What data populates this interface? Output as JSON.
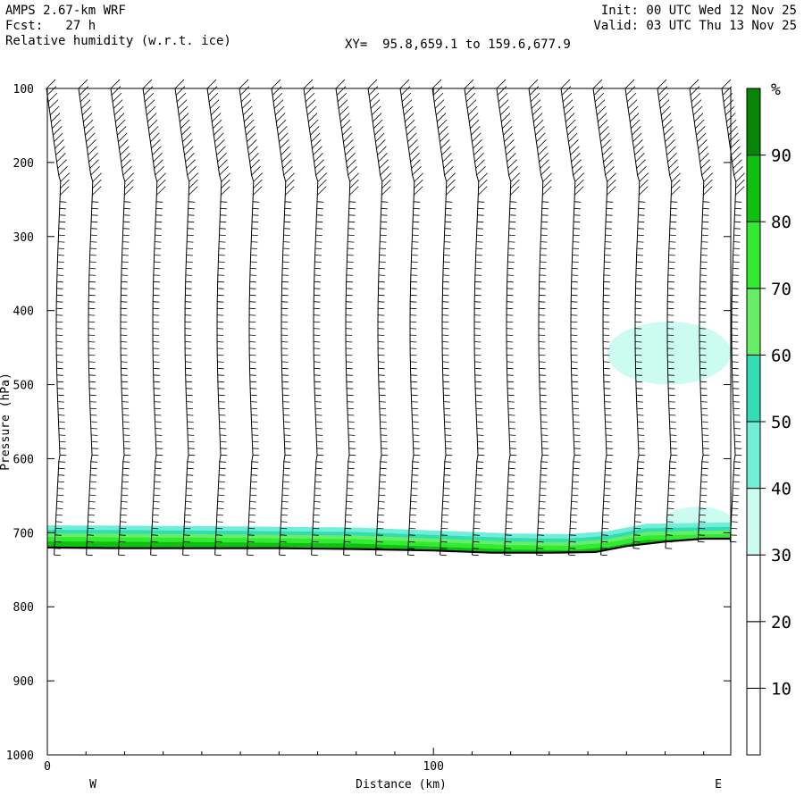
{
  "header": {
    "model": "AMPS 2.67-km WRF",
    "forecast": "Fcst:   27 h",
    "field": "Relative humidity (w.r.t. ice)",
    "init": "Init: 00 UTC Wed 12 Nov 25",
    "valid": "Valid: 03 UTC Thu 13 Nov 25",
    "xy": "XY=  95.8,659.1 to 159.6,677.9"
  },
  "chart_data": {
    "type": "heatmap",
    "title": "Relative humidity (w.r.t. ice)",
    "xlabel": "Distance (km)",
    "ylabel": "Pressure (hPa)",
    "x_range": [
      0,
      177
    ],
    "y_range": [
      1000,
      100
    ],
    "y_axis_inverted": true,
    "x_ticks": [
      "0",
      "100"
    ],
    "x_tick_values": [
      0,
      100
    ],
    "y_ticks": [
      "100",
      "200",
      "300",
      "400",
      "500",
      "600",
      "700",
      "800",
      "900",
      "1000"
    ],
    "y_tick_values": [
      100,
      200,
      300,
      400,
      500,
      600,
      700,
      800,
      900,
      1000
    ],
    "x_end_labels": {
      "left": "W",
      "right": "E"
    },
    "colorbar": {
      "unit": "%",
      "levels": [
        10,
        20,
        30,
        40,
        50,
        60,
        70,
        80,
        90
      ],
      "colors": [
        "#ffffff",
        "#ffffff",
        "#ffffff",
        "#ccfbf0",
        "#70eed8",
        "#33dcb2",
        "#66ef66",
        "#33ea33",
        "#10c010",
        "#068506"
      ]
    },
    "surface_pressure": [
      {
        "x": 0,
        "p": 720
      },
      {
        "x": 20,
        "p": 721
      },
      {
        "x": 40,
        "p": 721
      },
      {
        "x": 60,
        "p": 721
      },
      {
        "x": 80,
        "p": 722
      },
      {
        "x": 100,
        "p": 724
      },
      {
        "x": 115,
        "p": 727
      },
      {
        "x": 130,
        "p": 727
      },
      {
        "x": 142,
        "p": 726
      },
      {
        "x": 150,
        "p": 718
      },
      {
        "x": 160,
        "p": 712
      },
      {
        "x": 170,
        "p": 708
      },
      {
        "x": 177,
        "p": 708
      }
    ],
    "moist_layer_top_pressure": [
      {
        "x": 0,
        "p": 690
      },
      {
        "x": 40,
        "p": 691
      },
      {
        "x": 80,
        "p": 693
      },
      {
        "x": 100,
        "p": 697
      },
      {
        "x": 120,
        "p": 701
      },
      {
        "x": 135,
        "p": 702
      },
      {
        "x": 145,
        "p": 698
      },
      {
        "x": 155,
        "p": 688
      },
      {
        "x": 177,
        "p": 686
      }
    ],
    "moist_patches": [
      {
        "x_range": [
          145,
          177
        ],
        "p_range": [
          415,
          500
        ],
        "rh_min": 30
      },
      {
        "x_range": [
          160,
          177
        ],
        "p_range": [
          665,
          700
        ],
        "rh_min": 30
      }
    ],
    "wind_profile_count": 22
  }
}
